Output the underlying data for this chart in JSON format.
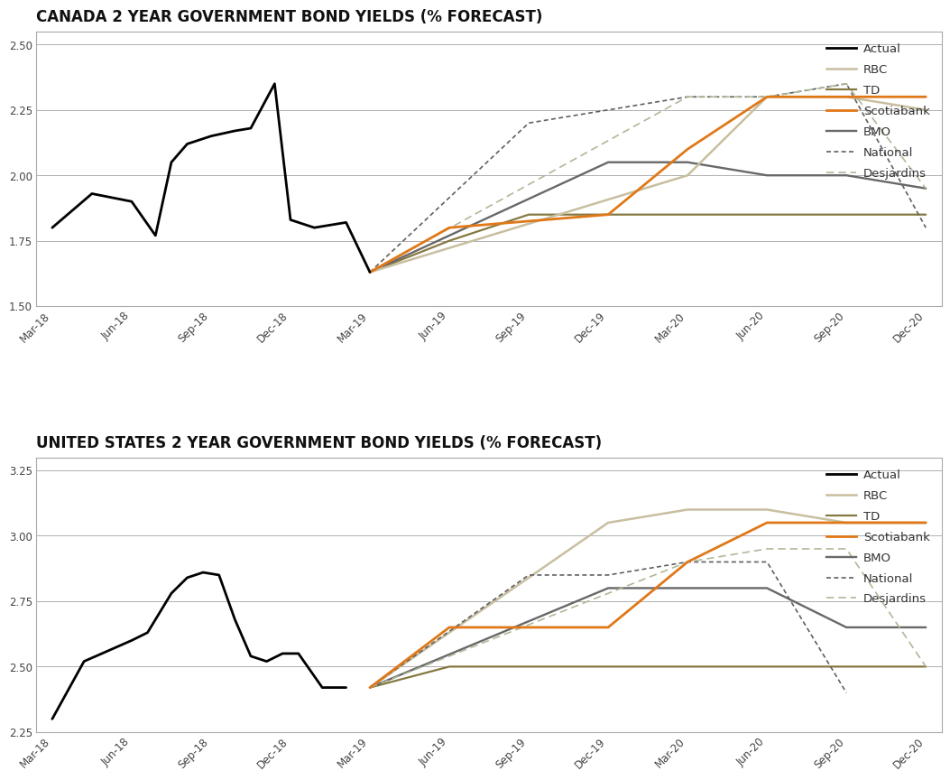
{
  "title1": "CANADA 2 YEAR GOVERNMENT BOND YIELDS (% FORECAST)",
  "title2": "UNITED STATES 2 YEAR GOVERNMENT BOND YIELDS (% FORECAST)",
  "xtick_labels": [
    "Mar-18",
    "Jun-18",
    "Sep-18",
    "Dec-18",
    "Mar-19",
    "Jun-19",
    "Sep-19",
    "Dec-19",
    "Mar-20",
    "Jun-20",
    "Sep-20",
    "Dec-20"
  ],
  "canada": {
    "actual_x": [
      0,
      0.5,
      1.0,
      1.3,
      1.5,
      1.7,
      2.0,
      2.3,
      2.5,
      2.8,
      3.0,
      3.3,
      3.7,
      4.0,
      4.3,
      4.7,
      5.0
    ],
    "actual_y": [
      1.8,
      1.93,
      1.9,
      1.77,
      2.05,
      2.12,
      2.15,
      2.17,
      2.18,
      2.35,
      1.83,
      1.8,
      1.82,
      1.63,
      null,
      null,
      null
    ],
    "rbc": [
      null,
      null,
      null,
      null,
      1.63,
      null,
      null,
      null,
      2.0,
      2.3,
      2.3,
      2.25
    ],
    "td": [
      null,
      null,
      null,
      null,
      1.63,
      1.75,
      1.85,
      1.85,
      1.85,
      1.85,
      1.85,
      1.85
    ],
    "scotiabank": [
      null,
      null,
      null,
      null,
      1.63,
      1.8,
      null,
      1.85,
      2.1,
      2.3,
      2.3,
      2.3
    ],
    "bmo": [
      null,
      null,
      null,
      null,
      1.63,
      null,
      null,
      2.05,
      2.05,
      2.0,
      2.0,
      1.95
    ],
    "national": [
      null,
      null,
      null,
      null,
      1.63,
      null,
      2.2,
      2.25,
      2.3,
      2.3,
      2.35,
      1.8
    ],
    "desjardins": [
      null,
      null,
      null,
      null,
      1.63,
      null,
      null,
      null,
      2.3,
      2.3,
      2.35,
      1.95
    ],
    "ylim": [
      1.5,
      2.55
    ],
    "yticks": [
      1.5,
      1.75,
      2.0,
      2.25,
      2.5
    ]
  },
  "us": {
    "actual_x": [
      0,
      0.4,
      0.7,
      1.0,
      1.2,
      1.5,
      1.7,
      1.9,
      2.1,
      2.3,
      2.5,
      2.7,
      2.9,
      3.1,
      3.4,
      3.7,
      4.0
    ],
    "actual_y": [
      2.3,
      2.52,
      2.56,
      2.6,
      2.63,
      2.78,
      2.84,
      2.86,
      2.85,
      2.68,
      2.54,
      2.52,
      2.55,
      2.55,
      2.42,
      2.42,
      null
    ],
    "rbc": [
      null,
      null,
      null,
      null,
      2.42,
      null,
      null,
      3.05,
      3.1,
      3.1,
      3.05,
      3.05
    ],
    "td": [
      null,
      null,
      null,
      null,
      2.42,
      2.5,
      2.5,
      2.5,
      2.5,
      2.5,
      2.5,
      2.5
    ],
    "scotiabank": [
      null,
      null,
      null,
      null,
      2.42,
      2.65,
      null,
      2.65,
      2.9,
      3.05,
      3.05,
      3.05
    ],
    "bmo": [
      null,
      null,
      null,
      null,
      2.42,
      null,
      null,
      2.8,
      2.8,
      2.8,
      2.65,
      2.65
    ],
    "national": [
      null,
      null,
      null,
      null,
      2.42,
      null,
      2.85,
      2.85,
      2.9,
      2.9,
      2.4,
      null
    ],
    "desjardins": [
      null,
      null,
      null,
      null,
      2.42,
      null,
      null,
      null,
      2.9,
      2.95,
      2.95,
      2.5
    ],
    "ylim": [
      2.25,
      3.3
    ],
    "yticks": [
      2.25,
      2.5,
      2.75,
      3.0,
      3.25
    ]
  },
  "colors": {
    "actual": "#000000",
    "rbc": "#c8bfa0",
    "td": "#857840",
    "scotiabank": "#e07818",
    "bmo": "#686868",
    "national": "#606060",
    "desjardins": "#b0b898"
  },
  "background_color": "#ffffff",
  "grid_color": "#b0b0b0",
  "title_fontsize": 12,
  "tick_fontsize": 8.5,
  "legend_fontsize": 9.5
}
